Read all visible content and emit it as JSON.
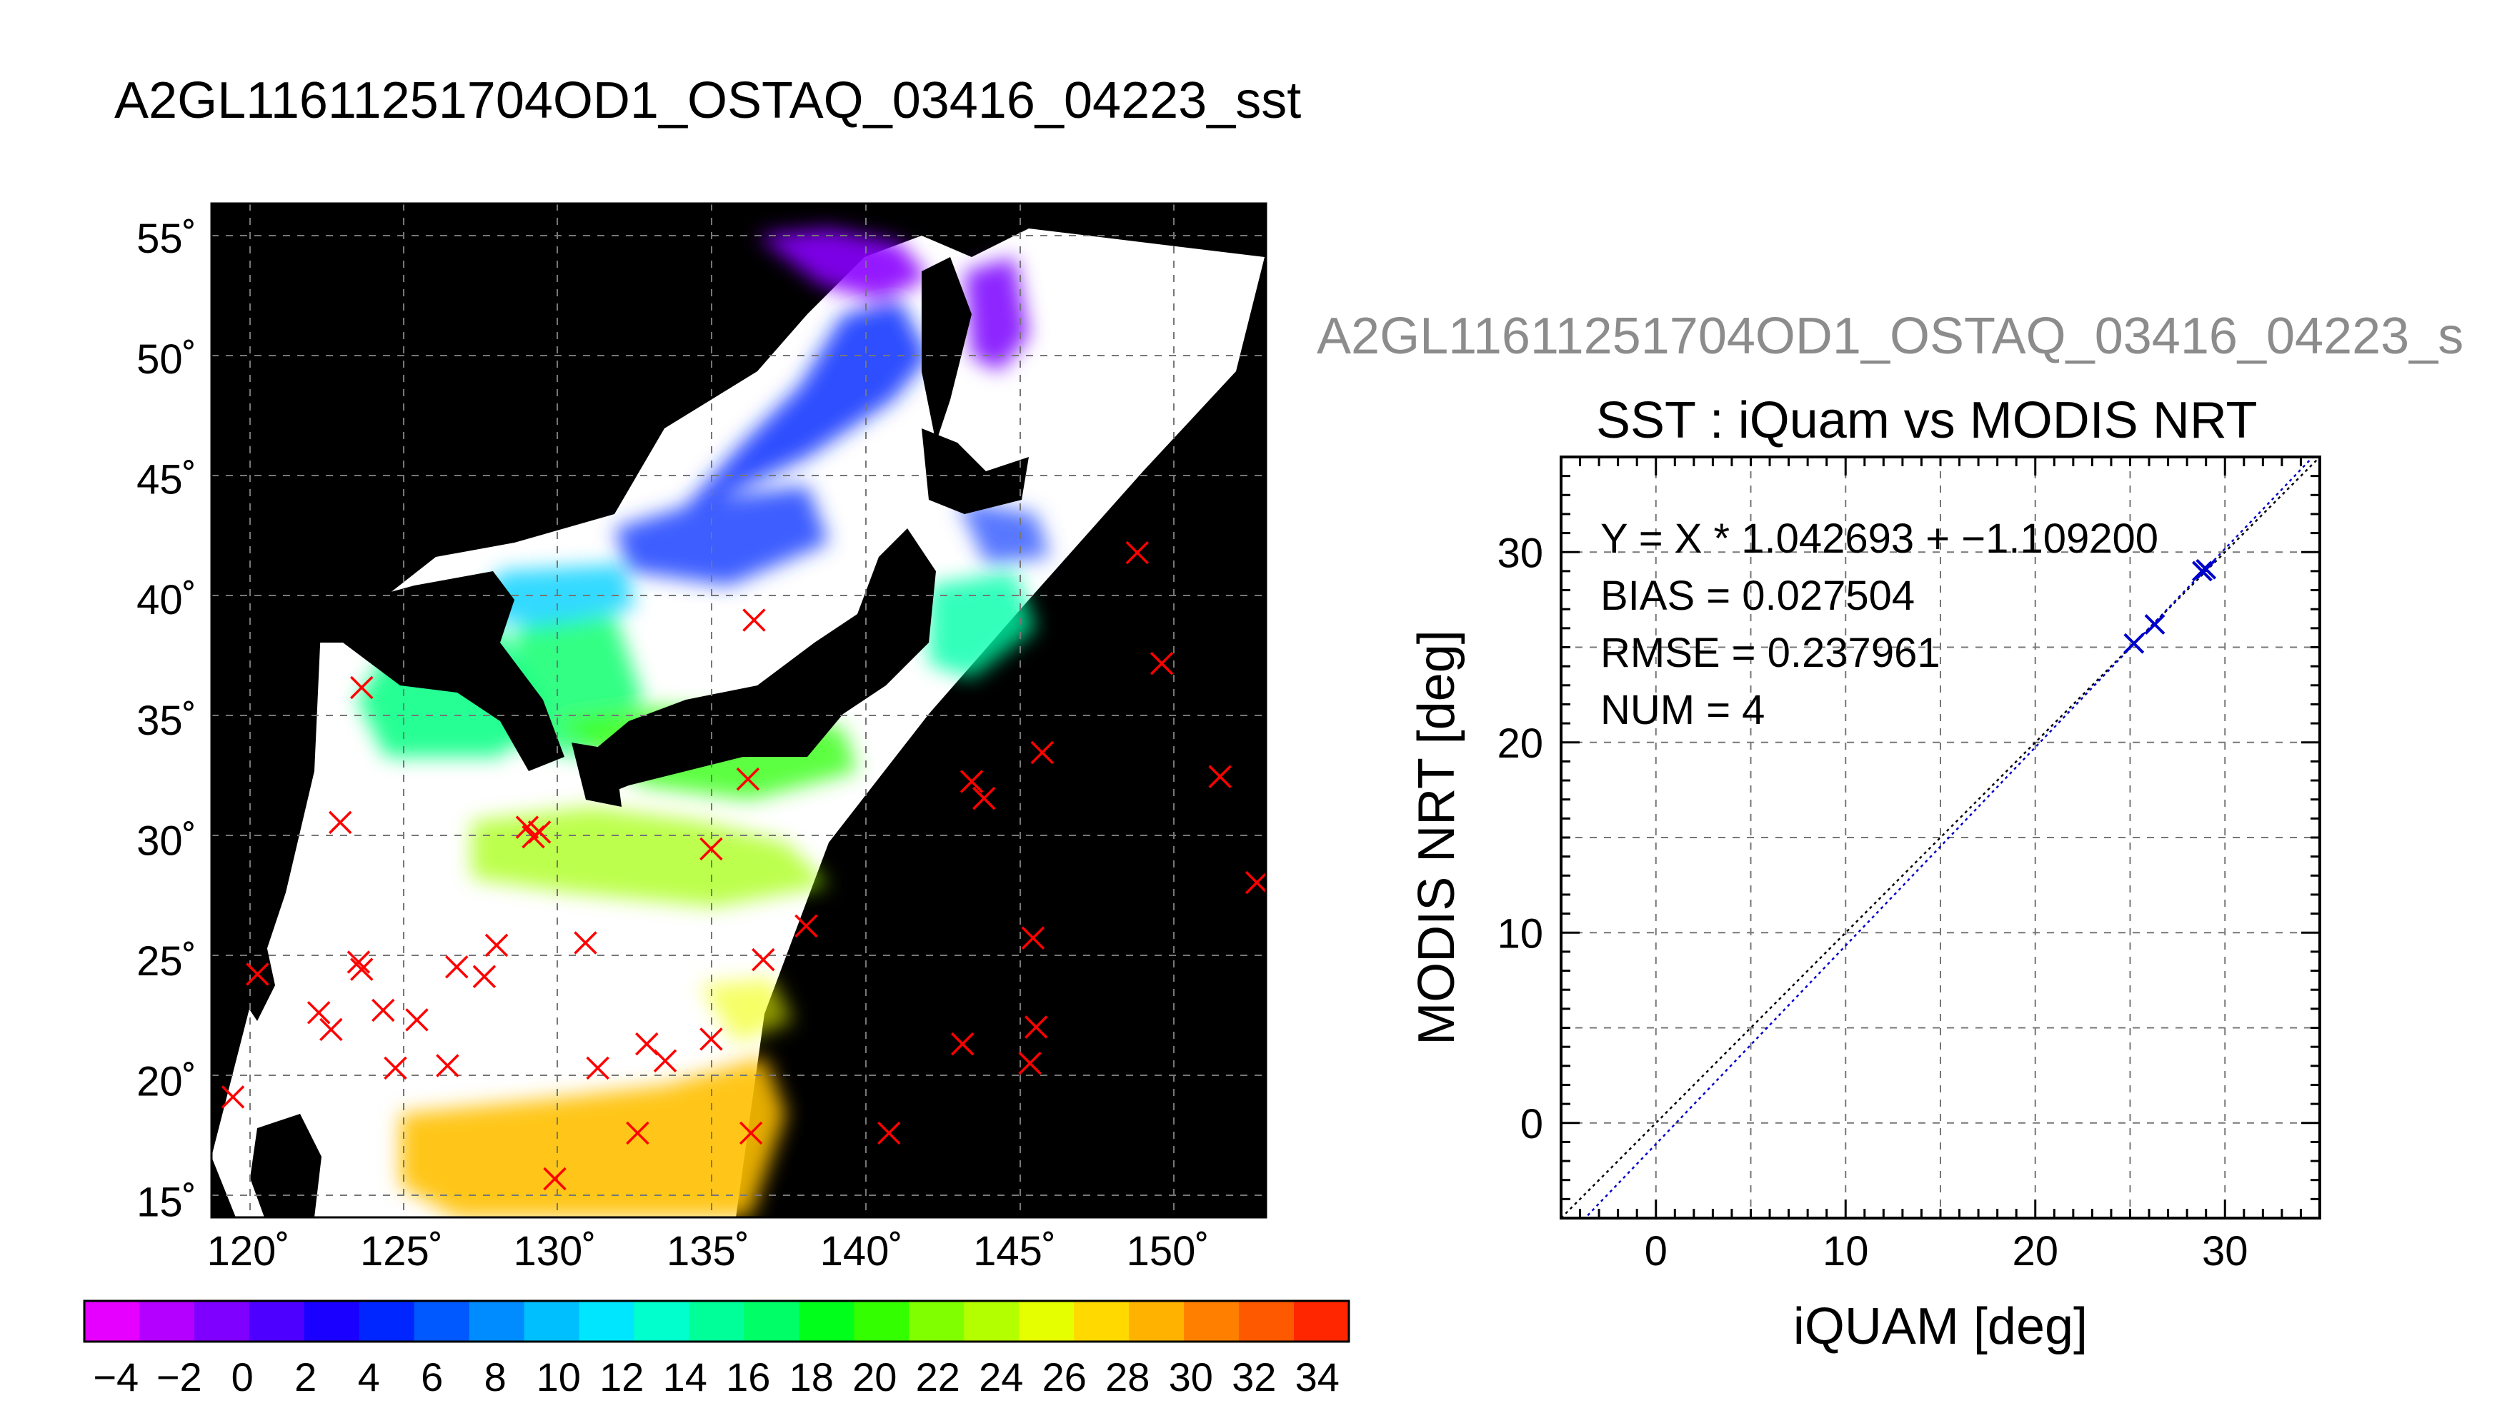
{
  "header": {
    "main_title": "A2GL11611251704OD1_OSTAQ_03416_04223_sst",
    "scatter_title_gray": "A2GL11611251704OD1_OSTAQ_03416_04223_s",
    "scatter_title": "SST : iQuam vs MODIS NRT"
  },
  "chart_data": [
    {
      "type": "heatmap",
      "description_role": "map",
      "lon_ticks": [
        120,
        125,
        130,
        135,
        140,
        145,
        150
      ],
      "lat_ticks": [
        15,
        20,
        25,
        30,
        35,
        40,
        45,
        50,
        55
      ],
      "lon_tick_labels": [
        "120˚",
        "125˚",
        "130˚",
        "135˚",
        "140˚",
        "145˚",
        "150˚"
      ],
      "lat_tick_labels": [
        "15˚",
        "20˚",
        "25˚",
        "30˚",
        "35˚",
        "40˚",
        "45˚",
        "50˚",
        "55˚"
      ],
      "lon_range": [
        118.8,
        153.2
      ],
      "lat_range": [
        14.3,
        56.4
      ],
      "grid": true,
      "background_color": "#000000",
      "marker_color": "#ff0000",
      "highlight_marker_color": "#0000cc",
      "matchup_points": [
        {
          "lon": 119.5,
          "lat": 19.3
        },
        {
          "lon": 120.3,
          "lat": 24.4
        },
        {
          "lon": 122.3,
          "lat": 22.8
        },
        {
          "lon": 122.7,
          "lat": 22.1
        },
        {
          "lon": 123.6,
          "lat": 24.9
        },
        {
          "lon": 123.7,
          "lat": 24.6
        },
        {
          "lon": 124.4,
          "lat": 22.9
        },
        {
          "lon": 124.8,
          "lat": 20.5
        },
        {
          "lon": 125.5,
          "lat": 22.5
        },
        {
          "lon": 126.5,
          "lat": 20.6
        },
        {
          "lon": 126.8,
          "lat": 24.7
        },
        {
          "lon": 127.7,
          "lat": 24.3
        },
        {
          "lon": 128.1,
          "lat": 25.6
        },
        {
          "lon": 123.0,
          "lat": 30.7
        },
        {
          "lon": 123.7,
          "lat": 36.3
        },
        {
          "lon": 129.1,
          "lat": 30.5
        },
        {
          "lon": 129.3,
          "lat": 30.1
        },
        {
          "lon": 129.5,
          "lat": 30.3
        },
        {
          "lon": 131.0,
          "lat": 25.7
        },
        {
          "lon": 131.4,
          "lat": 20.5
        },
        {
          "lon": 132.7,
          "lat": 17.8
        },
        {
          "lon": 133.0,
          "lat": 21.5
        },
        {
          "lon": 133.6,
          "lat": 20.8
        },
        {
          "lon": 135.1,
          "lat": 21.7
        },
        {
          "lon": 135.1,
          "lat": 29.6
        },
        {
          "lon": 136.3,
          "lat": 32.5
        },
        {
          "lon": 136.4,
          "lat": 17.8
        },
        {
          "lon": 136.5,
          "lat": 39.1
        },
        {
          "lon": 136.8,
          "lat": 25.0
        },
        {
          "lon": 138.2,
          "lat": 26.4
        },
        {
          "lon": 130.0,
          "lat": 15.9
        },
        {
          "lon": 140.9,
          "lat": 17.8
        },
        {
          "lon": 143.3,
          "lat": 21.5
        },
        {
          "lon": 143.6,
          "lat": 32.4
        },
        {
          "lon": 144.0,
          "lat": 31.7
        },
        {
          "lon": 145.5,
          "lat": 20.7
        },
        {
          "lon": 145.7,
          "lat": 22.2
        },
        {
          "lon": 145.6,
          "lat": 25.9
        },
        {
          "lon": 145.9,
          "lat": 33.6
        },
        {
          "lon": 149.0,
          "lat": 41.9
        },
        {
          "lon": 149.8,
          "lat": 37.3
        },
        {
          "lon": 151.7,
          "lat": 32.6
        },
        {
          "lon": 152.9,
          "lat": 28.2
        }
      ]
    },
    {
      "type": "heatmap",
      "description_role": "colorbar",
      "range": [
        -5,
        35
      ],
      "tick_labels": [
        "−4",
        "−2",
        "0",
        "2",
        "4",
        "6",
        "8",
        "10",
        "12",
        "14",
        "16",
        "18",
        "20",
        "22",
        "24",
        "26",
        "28",
        "30",
        "32",
        "34"
      ],
      "tick_values": [
        -4,
        -2,
        0,
        2,
        4,
        6,
        8,
        10,
        12,
        14,
        16,
        18,
        20,
        22,
        24,
        26,
        28,
        30,
        32,
        34
      ],
      "colors": [
        "#e600ff",
        "#b300ff",
        "#8000ff",
        "#4d00ff",
        "#1a00ff",
        "#0026ff",
        "#0059ff",
        "#008cff",
        "#00bfff",
        "#00e6ff",
        "#00ffcc",
        "#00ff99",
        "#00ff66",
        "#00ff1a",
        "#33ff00",
        "#80ff00",
        "#b3ff00",
        "#e6ff00",
        "#ffd900",
        "#ffb300",
        "#ff8000",
        "#ff5900",
        "#ff2600"
      ]
    },
    {
      "type": "scatter",
      "title": "SST : iQuam vs MODIS NRT",
      "xlabel": "iQUAM [deg]",
      "ylabel": "MODIS NRT [deg]",
      "xlim": [
        -5,
        35
      ],
      "ylim": [
        -5,
        35
      ],
      "x_ticks": [
        0,
        10,
        20,
        30
      ],
      "y_ticks": [
        0,
        10,
        20,
        30
      ],
      "grid": true,
      "points": [
        {
          "x": 25.2,
          "y": 25.2
        },
        {
          "x": 26.3,
          "y": 26.2
        },
        {
          "x": 28.8,
          "y": 29.0
        },
        {
          "x": 29.0,
          "y": 29.1
        }
      ],
      "point_color": "#0000cc",
      "fit_line": {
        "slope": 1.042693,
        "intercept": -1.1092,
        "color": "#0000cc"
      },
      "identity_line": {
        "slope": 1,
        "intercept": 0,
        "color": "#000000"
      },
      "stats": [
        "Y = X * 1.042693 + −1.109200",
        "BIAS = 0.027504",
        "RMSE = 0.237961",
        "NUM = 4"
      ]
    }
  ]
}
